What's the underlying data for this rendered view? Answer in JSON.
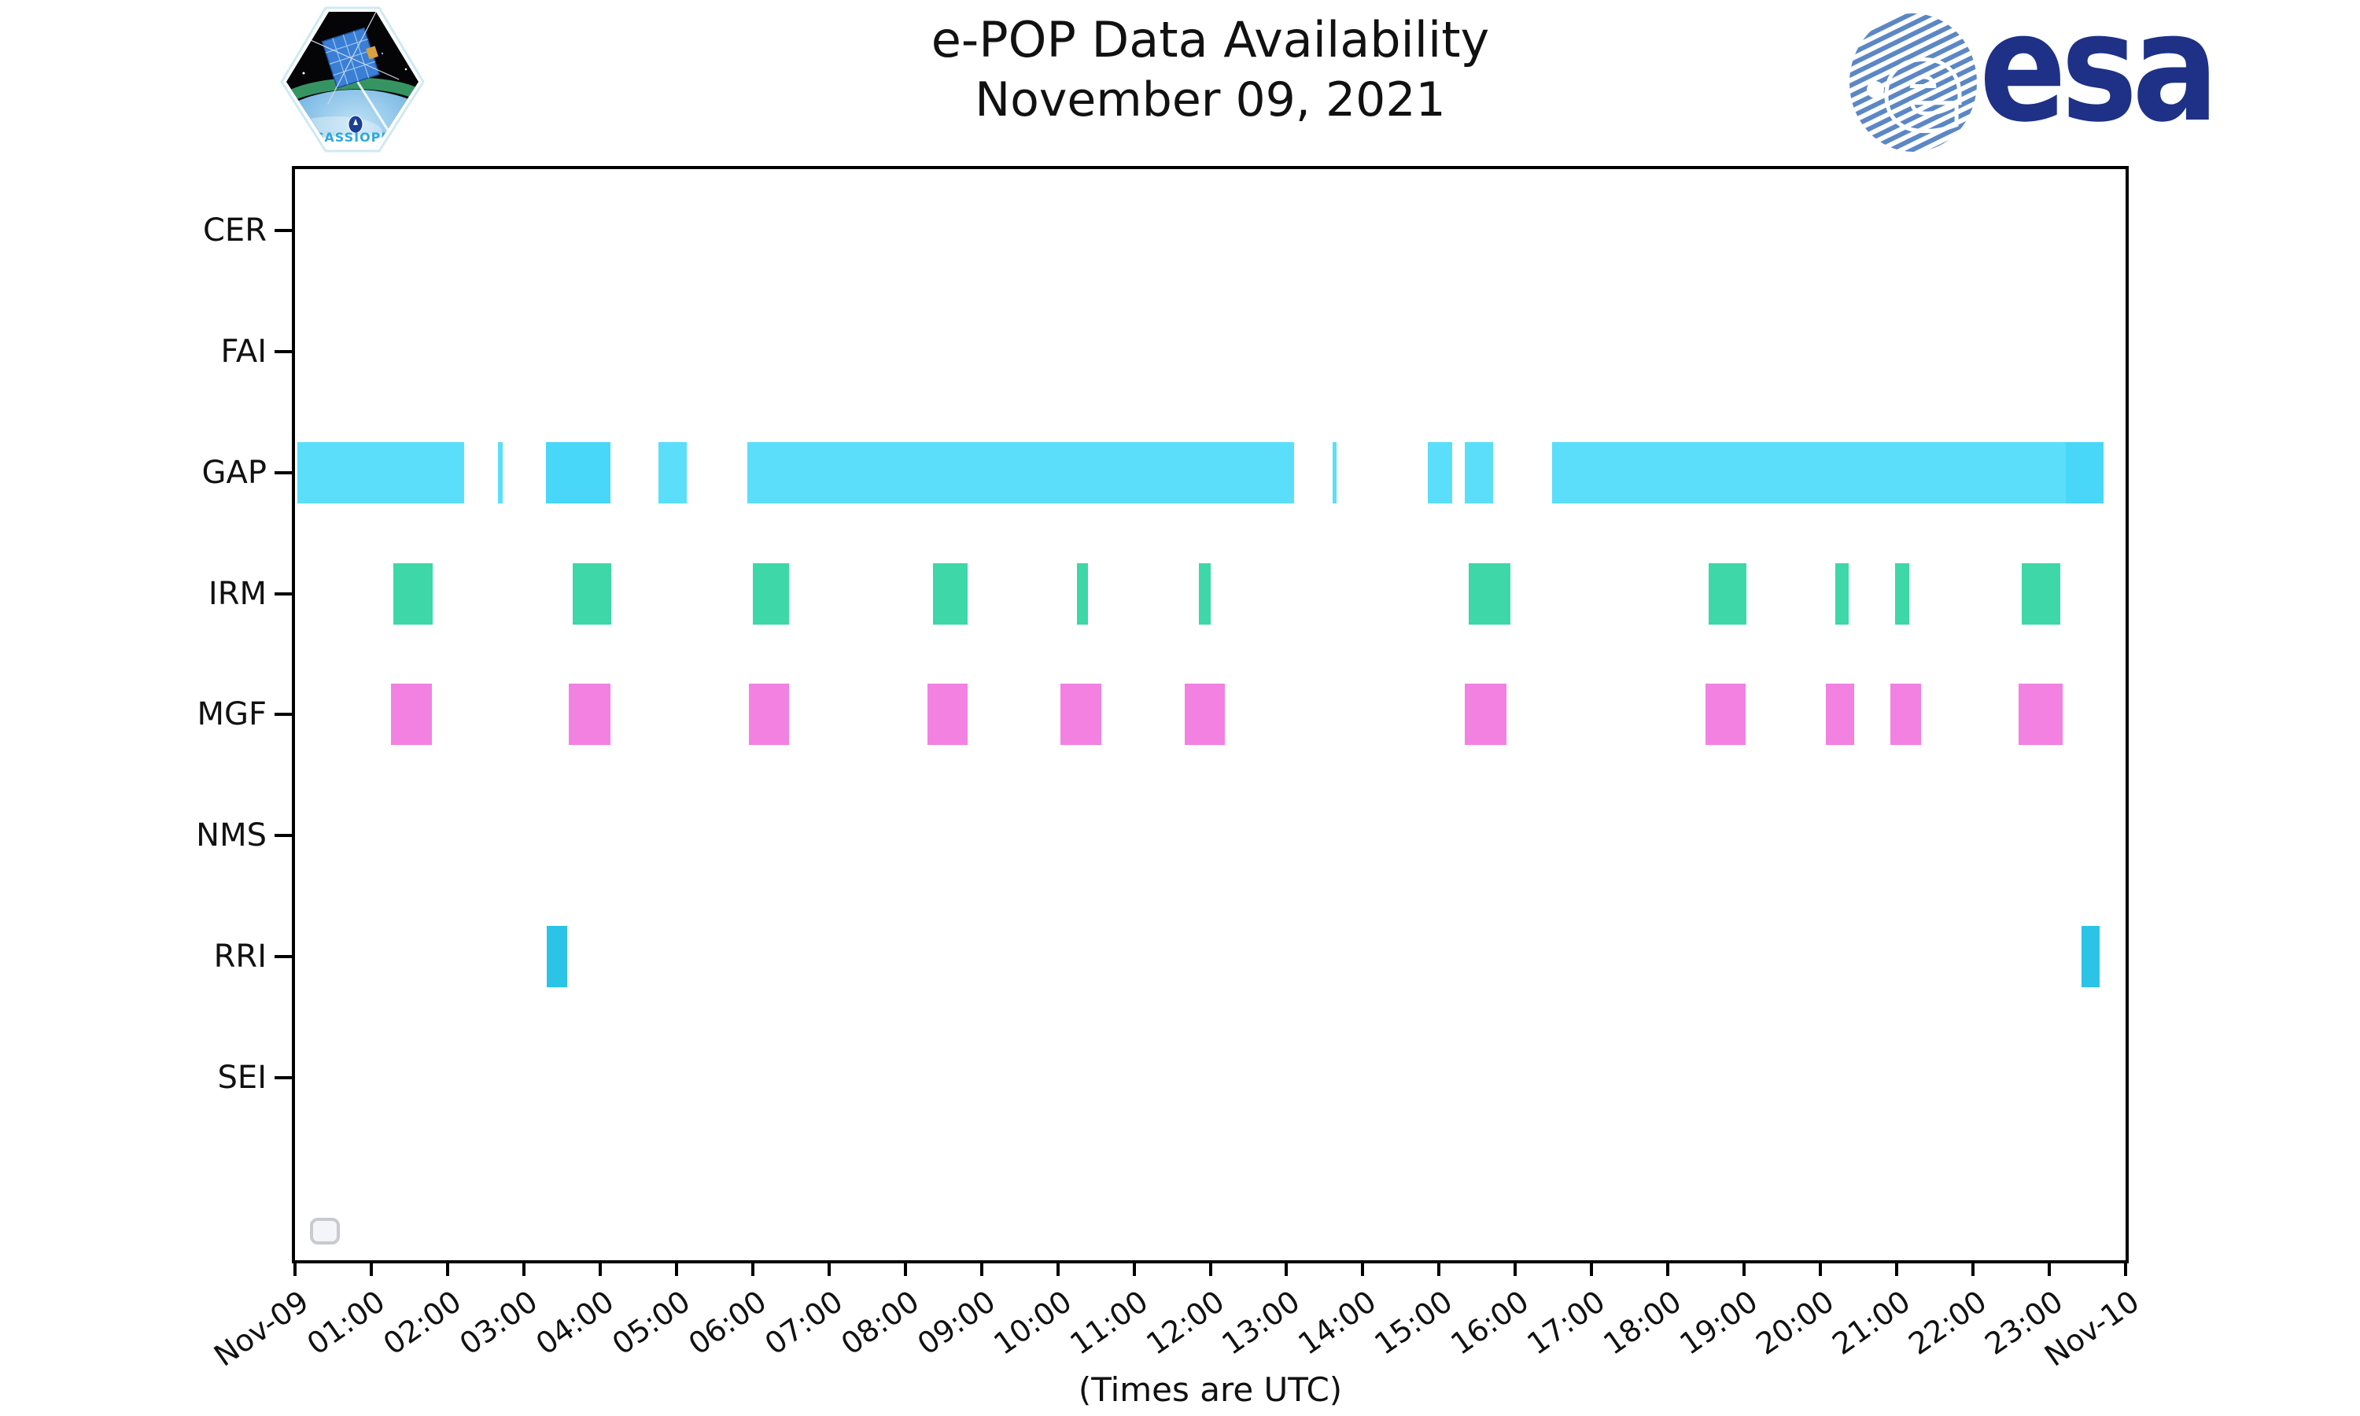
{
  "header": {
    "title_line1": "e-POP Data Availability",
    "title_line2": "November 09, 2021",
    "cassiope_label": "CASSIOPE",
    "esa_label": "esa"
  },
  "chart_data": {
    "type": "bar",
    "variant": "interval-timeline",
    "title": "e-POP Data Availability",
    "subtitle": "November 09, 2021",
    "xlabel": "(Times are UTC)",
    "grid": false,
    "x_axis": {
      "units": "hours UTC",
      "range_hours": [
        0,
        24
      ],
      "tick_labels": [
        "Nov-09",
        "01:00",
        "02:00",
        "03:00",
        "04:00",
        "05:00",
        "06:00",
        "07:00",
        "08:00",
        "09:00",
        "10:00",
        "11:00",
        "12:00",
        "13:00",
        "14:00",
        "15:00",
        "16:00",
        "17:00",
        "18:00",
        "19:00",
        "20:00",
        "21:00",
        "22:00",
        "23:00",
        "Nov-10"
      ]
    },
    "rows": [
      "CER",
      "FAI",
      "GAP",
      "IRM",
      "MGF",
      "NMS",
      "RRI",
      "SEI"
    ],
    "colors": {
      "gap": "#5BDEFA",
      "gap_dark": "#48D7F8",
      "irm": "#3DD7A8",
      "mgf": "#F281E2",
      "rri": "#2BC3E6"
    },
    "series": [
      {
        "row": "GAP",
        "color": "gap",
        "intervals": [
          [
            0.03,
            2.22
          ],
          [
            2.66,
            2.72
          ],
          [
            4.77,
            5.14
          ],
          [
            5.93,
            13.1
          ],
          [
            13.6,
            13.66
          ],
          [
            14.85,
            15.17
          ],
          [
            15.34,
            15.71
          ],
          [
            16.48,
            23.22
          ]
        ]
      },
      {
        "row": "GAP",
        "color": "gap_dark",
        "intervals": [
          [
            3.29,
            4.14
          ],
          [
            23.22,
            23.71
          ]
        ]
      },
      {
        "row": "IRM",
        "color": "irm",
        "intervals": [
          [
            1.29,
            1.8
          ],
          [
            3.64,
            4.15
          ],
          [
            6.0,
            6.48
          ],
          [
            8.36,
            8.82
          ],
          [
            10.25,
            10.4
          ],
          [
            11.85,
            12.01
          ],
          [
            15.39,
            15.93
          ],
          [
            18.53,
            19.03
          ],
          [
            20.19,
            20.37
          ],
          [
            20.98,
            21.16
          ],
          [
            22.64,
            23.14
          ]
        ]
      },
      {
        "row": "MGF",
        "color": "mgf",
        "intervals": [
          [
            1.26,
            1.79
          ],
          [
            3.59,
            4.14
          ],
          [
            5.95,
            6.48
          ],
          [
            8.29,
            8.82
          ],
          [
            10.04,
            10.57
          ],
          [
            11.66,
            12.19
          ],
          [
            15.34,
            15.88
          ],
          [
            18.49,
            19.02
          ],
          [
            20.07,
            20.44
          ],
          [
            20.92,
            21.32
          ],
          [
            22.6,
            23.17
          ]
        ]
      },
      {
        "row": "RRI",
        "color": "rri",
        "intervals": [
          [
            3.3,
            3.57
          ],
          [
            23.42,
            23.66
          ]
        ]
      }
    ],
    "empty_rows": [
      "CER",
      "FAI",
      "NMS",
      "SEI"
    ]
  }
}
